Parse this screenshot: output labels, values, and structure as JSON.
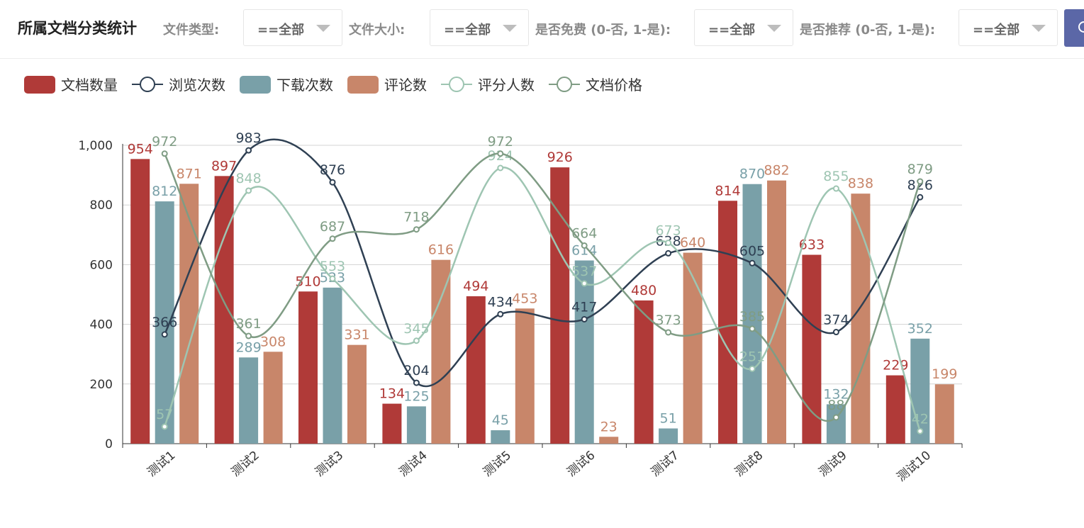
{
  "header": {
    "title": "所属文档分类统计",
    "filters": [
      {
        "label": "文件类型:",
        "value": "==全部"
      },
      {
        "label": "文件大小:",
        "value": "==全部"
      },
      {
        "label": "是否免费 (0-否, 1-是):",
        "value": "==全部"
      },
      {
        "label": "是否推荐 (0-否, 1-是):",
        "value": "==全部"
      }
    ],
    "search_icon": "search-icon"
  },
  "chart_data": {
    "type": "bar",
    "title": "",
    "xlabel": "",
    "ylabel": "",
    "ylim": [
      0,
      1000
    ],
    "yticks": [
      "0",
      "200",
      "400",
      "600",
      "800",
      "1,000"
    ],
    "grid": true,
    "legend_position": "top-left",
    "categories": [
      "测试1",
      "测试2",
      "测试3",
      "测试4",
      "测试5",
      "测试6",
      "测试7",
      "测试8",
      "测试9",
      "测试10"
    ],
    "series": [
      {
        "name": "文档数量",
        "kind": "bar",
        "color": "#b03a38",
        "values": [
          954,
          897,
          510,
          134,
          494,
          926,
          480,
          814,
          633,
          229
        ]
      },
      {
        "name": "浏览次数",
        "kind": "line",
        "color": "#2f4053",
        "values": [
          366,
          983,
          876,
          204,
          434,
          417,
          638,
          605,
          374,
          826
        ]
      },
      {
        "name": "下载次数",
        "kind": "bar",
        "color": "#79a0a8",
        "values": [
          812,
          289,
          523,
          125,
          45,
          614,
          51,
          870,
          132,
          352
        ]
      },
      {
        "name": "评论数",
        "kind": "bar",
        "color": "#c8866a",
        "values": [
          871,
          308,
          331,
          616,
          453,
          23,
          640,
          882,
          838,
          199
        ]
      },
      {
        "name": "评分人数",
        "kind": "line",
        "color": "#9ec5b2",
        "values": [
          57,
          848,
          553,
          345,
          924,
          537,
          673,
          251,
          855,
          42
        ]
      },
      {
        "name": "文档价格",
        "kind": "line",
        "color": "#7f9c84",
        "values": [
          972,
          361,
          687,
          718,
          972,
          664,
          373,
          385,
          88,
          879
        ]
      }
    ]
  }
}
